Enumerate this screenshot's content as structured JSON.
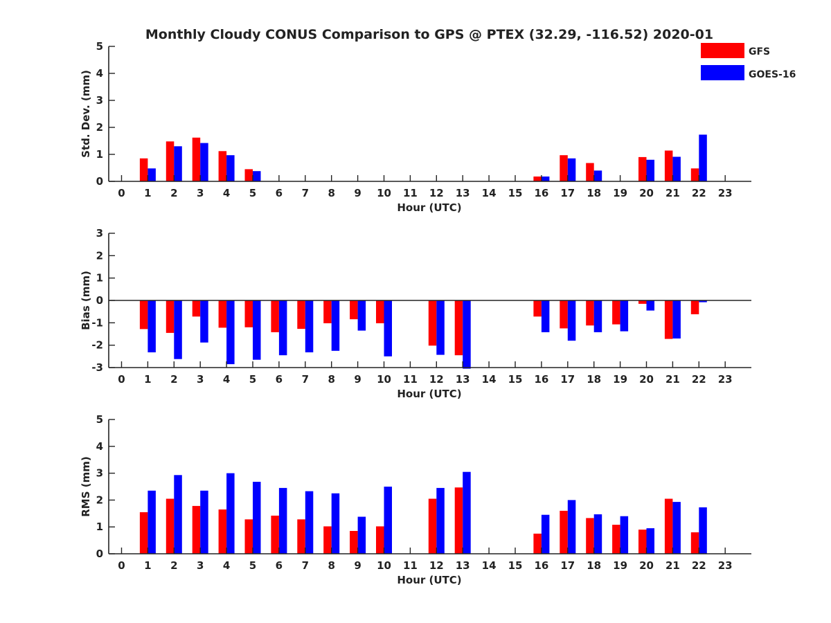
{
  "colors": {
    "gfs": "#ff0000",
    "goes": "#0000ff",
    "axis": "#222222",
    "background": "#ffffff"
  },
  "chart_data": {
    "type": "bar",
    "title": "Monthly Cloudy CONUS Comparison to GPS @ PTEX (32.29, -116.52) 2020-01",
    "legend": {
      "location": "top-right",
      "entries": [
        {
          "name": "GFS",
          "color": "#ff0000"
        },
        {
          "name": "GOES-16",
          "color": "#0000ff"
        }
      ]
    },
    "panels": [
      {
        "id": "std",
        "type": "bar",
        "ylabel": "Std. Dev. (mm)",
        "xlabel": "Hour (UTC)",
        "ylim": [
          0,
          5
        ],
        "yticks": [
          0,
          1,
          2,
          3,
          4,
          5
        ],
        "categories": [
          "0",
          "1",
          "2",
          "3",
          "4",
          "5",
          "6",
          "7",
          "8",
          "9",
          "10",
          "11",
          "12",
          "13",
          "14",
          "15",
          "16",
          "17",
          "18",
          "19",
          "20",
          "21",
          "22",
          "23"
        ],
        "zero_line": false,
        "series": [
          {
            "name": "GFS",
            "values": [
              null,
              0.85,
              1.48,
              1.62,
              1.12,
              0.45,
              0,
              0,
              0,
              0,
              0,
              0,
              0,
              0,
              null,
              null,
              0.18,
              0.97,
              0.68,
              null,
              0.9,
              1.14,
              0.48,
              null
            ]
          },
          {
            "name": "GOES-16",
            "values": [
              null,
              0.48,
              1.3,
              1.42,
              0.97,
              0.38,
              0,
              0,
              0,
              0,
              0,
              0,
              0,
              0,
              null,
              null,
              0.18,
              0.85,
              0.4,
              null,
              0.8,
              0.91,
              1.73,
              null
            ]
          }
        ]
      },
      {
        "id": "bias",
        "type": "bar",
        "ylabel": "Bias (mm)",
        "xlabel": "Hour (UTC)",
        "ylim": [
          -3,
          3
        ],
        "yticks": [
          -3,
          -2,
          -1,
          0,
          1,
          2,
          3
        ],
        "categories": [
          "0",
          "1",
          "2",
          "3",
          "4",
          "5",
          "6",
          "7",
          "8",
          "9",
          "10",
          "11",
          "12",
          "13",
          "14",
          "15",
          "16",
          "17",
          "18",
          "19",
          "20",
          "21",
          "22",
          "23"
        ],
        "zero_line": true,
        "series": [
          {
            "name": "GFS",
            "values": [
              null,
              -1.28,
              -1.45,
              -0.72,
              -1.22,
              -1.2,
              -1.42,
              -1.27,
              -1.02,
              -0.84,
              -1.02,
              null,
              -2.02,
              -2.45,
              null,
              null,
              -0.72,
              -1.25,
              -1.12,
              -1.07,
              -0.15,
              -1.72,
              -0.62,
              null
            ]
          },
          {
            "name": "GOES-16",
            "values": [
              null,
              -2.32,
              -2.62,
              -1.88,
              -2.85,
              -2.65,
              -2.45,
              -2.32,
              -2.25,
              -1.35,
              -2.5,
              null,
              -2.43,
              -3.05,
              null,
              null,
              -1.42,
              -1.8,
              -1.42,
              -1.38,
              -0.45,
              -1.7,
              -0.08,
              null
            ]
          }
        ]
      },
      {
        "id": "rms",
        "type": "bar",
        "ylabel": "RMS (mm)",
        "xlabel": "Hour (UTC)",
        "ylim": [
          0,
          5
        ],
        "yticks": [
          0,
          1,
          2,
          3,
          4,
          5
        ],
        "categories": [
          "0",
          "1",
          "2",
          "3",
          "4",
          "5",
          "6",
          "7",
          "8",
          "9",
          "10",
          "11",
          "12",
          "13",
          "14",
          "15",
          "16",
          "17",
          "18",
          "19",
          "20",
          "21",
          "22",
          "23"
        ],
        "zero_line": false,
        "series": [
          {
            "name": "GFS",
            "values": [
              null,
              1.55,
              2.05,
              1.78,
              1.65,
              1.28,
              1.42,
              1.28,
              1.02,
              0.85,
              1.02,
              null,
              2.05,
              2.47,
              null,
              null,
              0.75,
              1.6,
              1.33,
              1.08,
              0.9,
              2.05,
              0.8,
              null
            ]
          },
          {
            "name": "GOES-16",
            "values": [
              null,
              2.35,
              2.93,
              2.35,
              3.0,
              2.68,
              2.45,
              2.33,
              2.25,
              1.38,
              2.5,
              null,
              2.45,
              3.05,
              null,
              null,
              1.45,
              2.0,
              1.47,
              1.4,
              0.95,
              1.93,
              1.73,
              null
            ]
          }
        ]
      }
    ]
  }
}
